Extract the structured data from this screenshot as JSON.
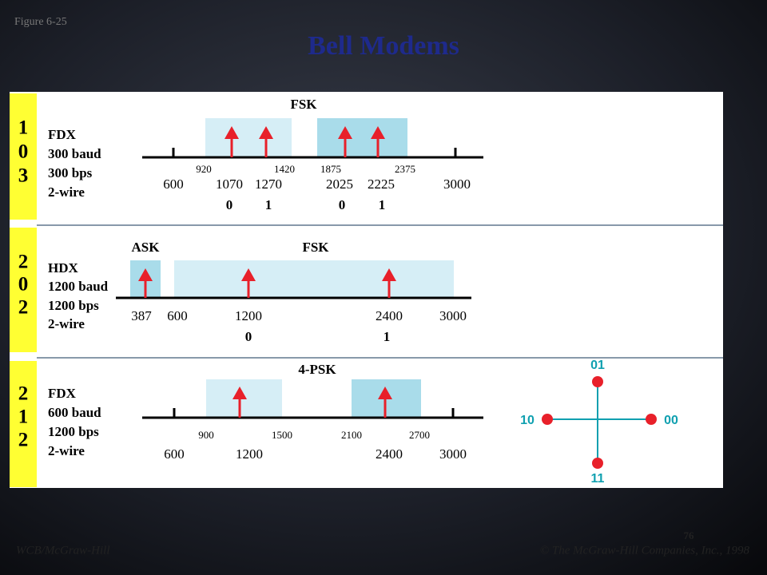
{
  "figure_label": "Figure 6-25",
  "title": "Bell Modems",
  "modems": [
    {
      "id": [
        "1",
        "0",
        "3"
      ],
      "specs": [
        "FDX",
        "300 baud",
        "300 bps",
        "2-wire"
      ],
      "modulation": [
        "FSK"
      ],
      "band_edges": [
        "920",
        "1420",
        "1875",
        "2375"
      ],
      "freqs": [
        "600",
        "1070",
        "1270",
        "2025",
        "2225",
        "3000"
      ],
      "bits": [
        "0",
        "1",
        "0",
        "1"
      ]
    },
    {
      "id": [
        "2",
        "0",
        "2"
      ],
      "specs": [
        "HDX",
        "1200 baud",
        "1200 bps",
        "2-wire"
      ],
      "modulation": [
        "ASK",
        "FSK"
      ],
      "freqs": [
        "387",
        "600",
        "1200",
        "2400",
        "3000"
      ],
      "bits": [
        "0",
        "1"
      ]
    },
    {
      "id": [
        "2",
        "1",
        "2"
      ],
      "specs": [
        "FDX",
        "600 baud",
        "1200 bps",
        "2-wire"
      ],
      "modulation": [
        "4-PSK"
      ],
      "band_edges": [
        "900",
        "1500",
        "2100",
        "2700"
      ],
      "freqs": [
        "600",
        "1200",
        "2400",
        "3000"
      ]
    }
  ],
  "constellation": {
    "labels": [
      "01",
      "10",
      "00",
      "11"
    ]
  },
  "page_number": "76",
  "footer_left": "WCB/McGraw-Hill",
  "footer_right": "© The McGraw-Hill Companies, Inc., 1998"
}
